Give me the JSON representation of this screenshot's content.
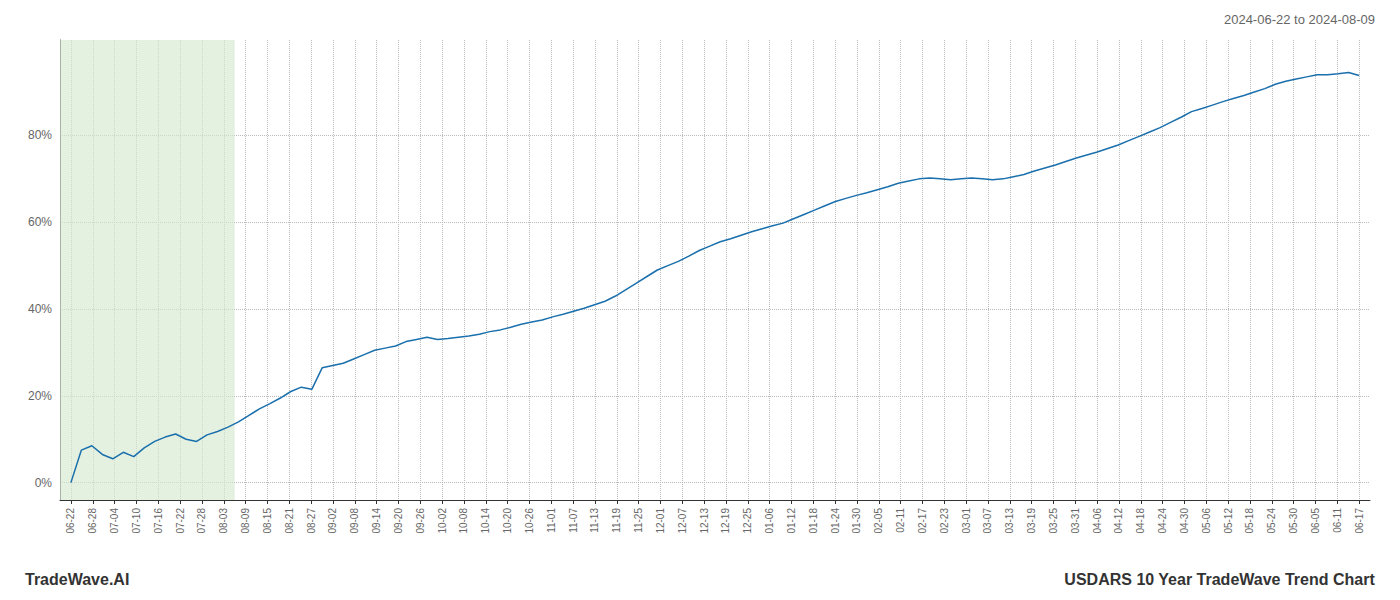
{
  "chart_data": {
    "type": "line",
    "title": "USDARS 10 Year TradeWave Trend Chart",
    "subtitle": "2024-06-22 to 2024-08-09",
    "annotations": [
      "TradeWave.AI"
    ],
    "color": "#1a6fad",
    "grid": true,
    "highlight": {
      "start": "06-22",
      "end": "08-03",
      "color": "#d6ead0"
    },
    "xlim": [
      -0.5,
      59.5
    ],
    "xticks": [
      {
        "value": 0,
        "label": "06-22"
      },
      {
        "value": 1,
        "label": "06-28"
      },
      {
        "value": 2,
        "label": "07-04"
      },
      {
        "value": 3,
        "label": "07-10"
      },
      {
        "value": 4,
        "label": "07-16"
      },
      {
        "value": 5,
        "label": "07-22"
      },
      {
        "value": 6,
        "label": "07-28"
      },
      {
        "value": 7,
        "label": "08-03"
      },
      {
        "value": 8,
        "label": "08-09"
      },
      {
        "value": 9,
        "label": "08-15"
      },
      {
        "value": 10,
        "label": "08-21"
      },
      {
        "value": 11,
        "label": "08-27"
      },
      {
        "value": 12,
        "label": "09-02"
      },
      {
        "value": 13,
        "label": "09-08"
      },
      {
        "value": 14,
        "label": "09-14"
      },
      {
        "value": 15,
        "label": "09-20"
      },
      {
        "value": 16,
        "label": "09-26"
      },
      {
        "value": 17,
        "label": "10-02"
      },
      {
        "value": 18,
        "label": "10-08"
      },
      {
        "value": 19,
        "label": "10-14"
      },
      {
        "value": 20,
        "label": "10-20"
      },
      {
        "value": 21,
        "label": "10-26"
      },
      {
        "value": 22,
        "label": "11-01"
      },
      {
        "value": 23,
        "label": "11-07"
      },
      {
        "value": 24,
        "label": "11-13"
      },
      {
        "value": 25,
        "label": "11-19"
      },
      {
        "value": 26,
        "label": "11-25"
      },
      {
        "value": 27,
        "label": "12-01"
      },
      {
        "value": 28,
        "label": "12-07"
      },
      {
        "value": 29,
        "label": "12-13"
      },
      {
        "value": 30,
        "label": "12-19"
      },
      {
        "value": 31,
        "label": "12-25"
      },
      {
        "value": 32,
        "label": "01-06"
      },
      {
        "value": 33,
        "label": "01-12"
      },
      {
        "value": 34,
        "label": "01-18"
      },
      {
        "value": 35,
        "label": "01-24"
      },
      {
        "value": 36,
        "label": "01-30"
      },
      {
        "value": 37,
        "label": "02-05"
      },
      {
        "value": 38,
        "label": "02-11"
      },
      {
        "value": 39,
        "label": "02-17"
      },
      {
        "value": 40,
        "label": "02-23"
      },
      {
        "value": 41,
        "label": "03-01"
      },
      {
        "value": 42,
        "label": "03-07"
      },
      {
        "value": 43,
        "label": "03-13"
      },
      {
        "value": 44,
        "label": "03-19"
      },
      {
        "value": 45,
        "label": "03-25"
      },
      {
        "value": 46,
        "label": "03-31"
      },
      {
        "value": 47,
        "label": "04-06"
      },
      {
        "value": 48,
        "label": "04-12"
      },
      {
        "value": 49,
        "label": "04-18"
      },
      {
        "value": 50,
        "label": "04-24"
      },
      {
        "value": 51,
        "label": "04-30"
      },
      {
        "value": 52,
        "label": "05-06"
      },
      {
        "value": 53,
        "label": "05-12"
      },
      {
        "value": 54,
        "label": "05-18"
      },
      {
        "value": 55,
        "label": "05-24"
      },
      {
        "value": 56,
        "label": "05-30"
      },
      {
        "value": 57,
        "label": "06-05"
      },
      {
        "value": 58,
        "label": "06-11"
      },
      {
        "value": 59,
        "label": "06-17"
      }
    ],
    "ylim": [
      -0.04,
      1.02
    ],
    "yticks": [
      {
        "value": 0.0,
        "label": "0%"
      },
      {
        "value": 0.2,
        "label": "20%"
      },
      {
        "value": 0.4,
        "label": "40%"
      },
      {
        "value": 0.6,
        "label": "60%"
      },
      {
        "value": 0.8,
        "label": "80%"
      }
    ],
    "values": [
      0.0,
      0.075,
      0.085,
      0.065,
      0.055,
      0.07,
      0.06,
      0.08,
      0.095,
      0.105,
      0.112,
      0.1,
      0.095,
      0.11,
      0.118,
      0.128,
      0.14,
      0.155,
      0.17,
      0.182,
      0.195,
      0.21,
      0.22,
      0.215,
      0.265,
      0.27,
      0.275,
      0.285,
      0.295,
      0.305,
      0.31,
      0.315,
      0.325,
      0.33,
      0.335,
      0.33,
      0.332,
      0.335,
      0.338,
      0.342,
      0.348,
      0.352,
      0.358,
      0.365,
      0.37,
      0.375,
      0.382,
      0.388,
      0.395,
      0.402,
      0.41,
      0.418,
      0.43,
      0.445,
      0.46,
      0.475,
      0.49,
      0.5,
      0.51,
      0.522,
      0.535,
      0.545,
      0.555,
      0.562,
      0.57,
      0.578,
      0.585,
      0.592,
      0.598,
      0.608,
      0.618,
      0.628,
      0.638,
      0.648,
      0.655,
      0.662,
      0.668,
      0.675,
      0.682,
      0.69,
      0.695,
      0.7,
      0.702,
      0.7,
      0.698,
      0.7,
      0.702,
      0.7,
      0.698,
      0.7,
      0.705,
      0.71,
      0.718,
      0.725,
      0.732,
      0.74,
      0.748,
      0.755,
      0.762,
      0.77,
      0.778,
      0.788,
      0.798,
      0.808,
      0.818,
      0.83,
      0.842,
      0.855,
      0.862,
      0.87,
      0.878,
      0.885,
      0.892,
      0.9,
      0.908,
      0.918,
      0.925,
      0.93,
      0.935,
      0.94,
      0.94,
      0.942,
      0.945,
      0.938
    ]
  }
}
